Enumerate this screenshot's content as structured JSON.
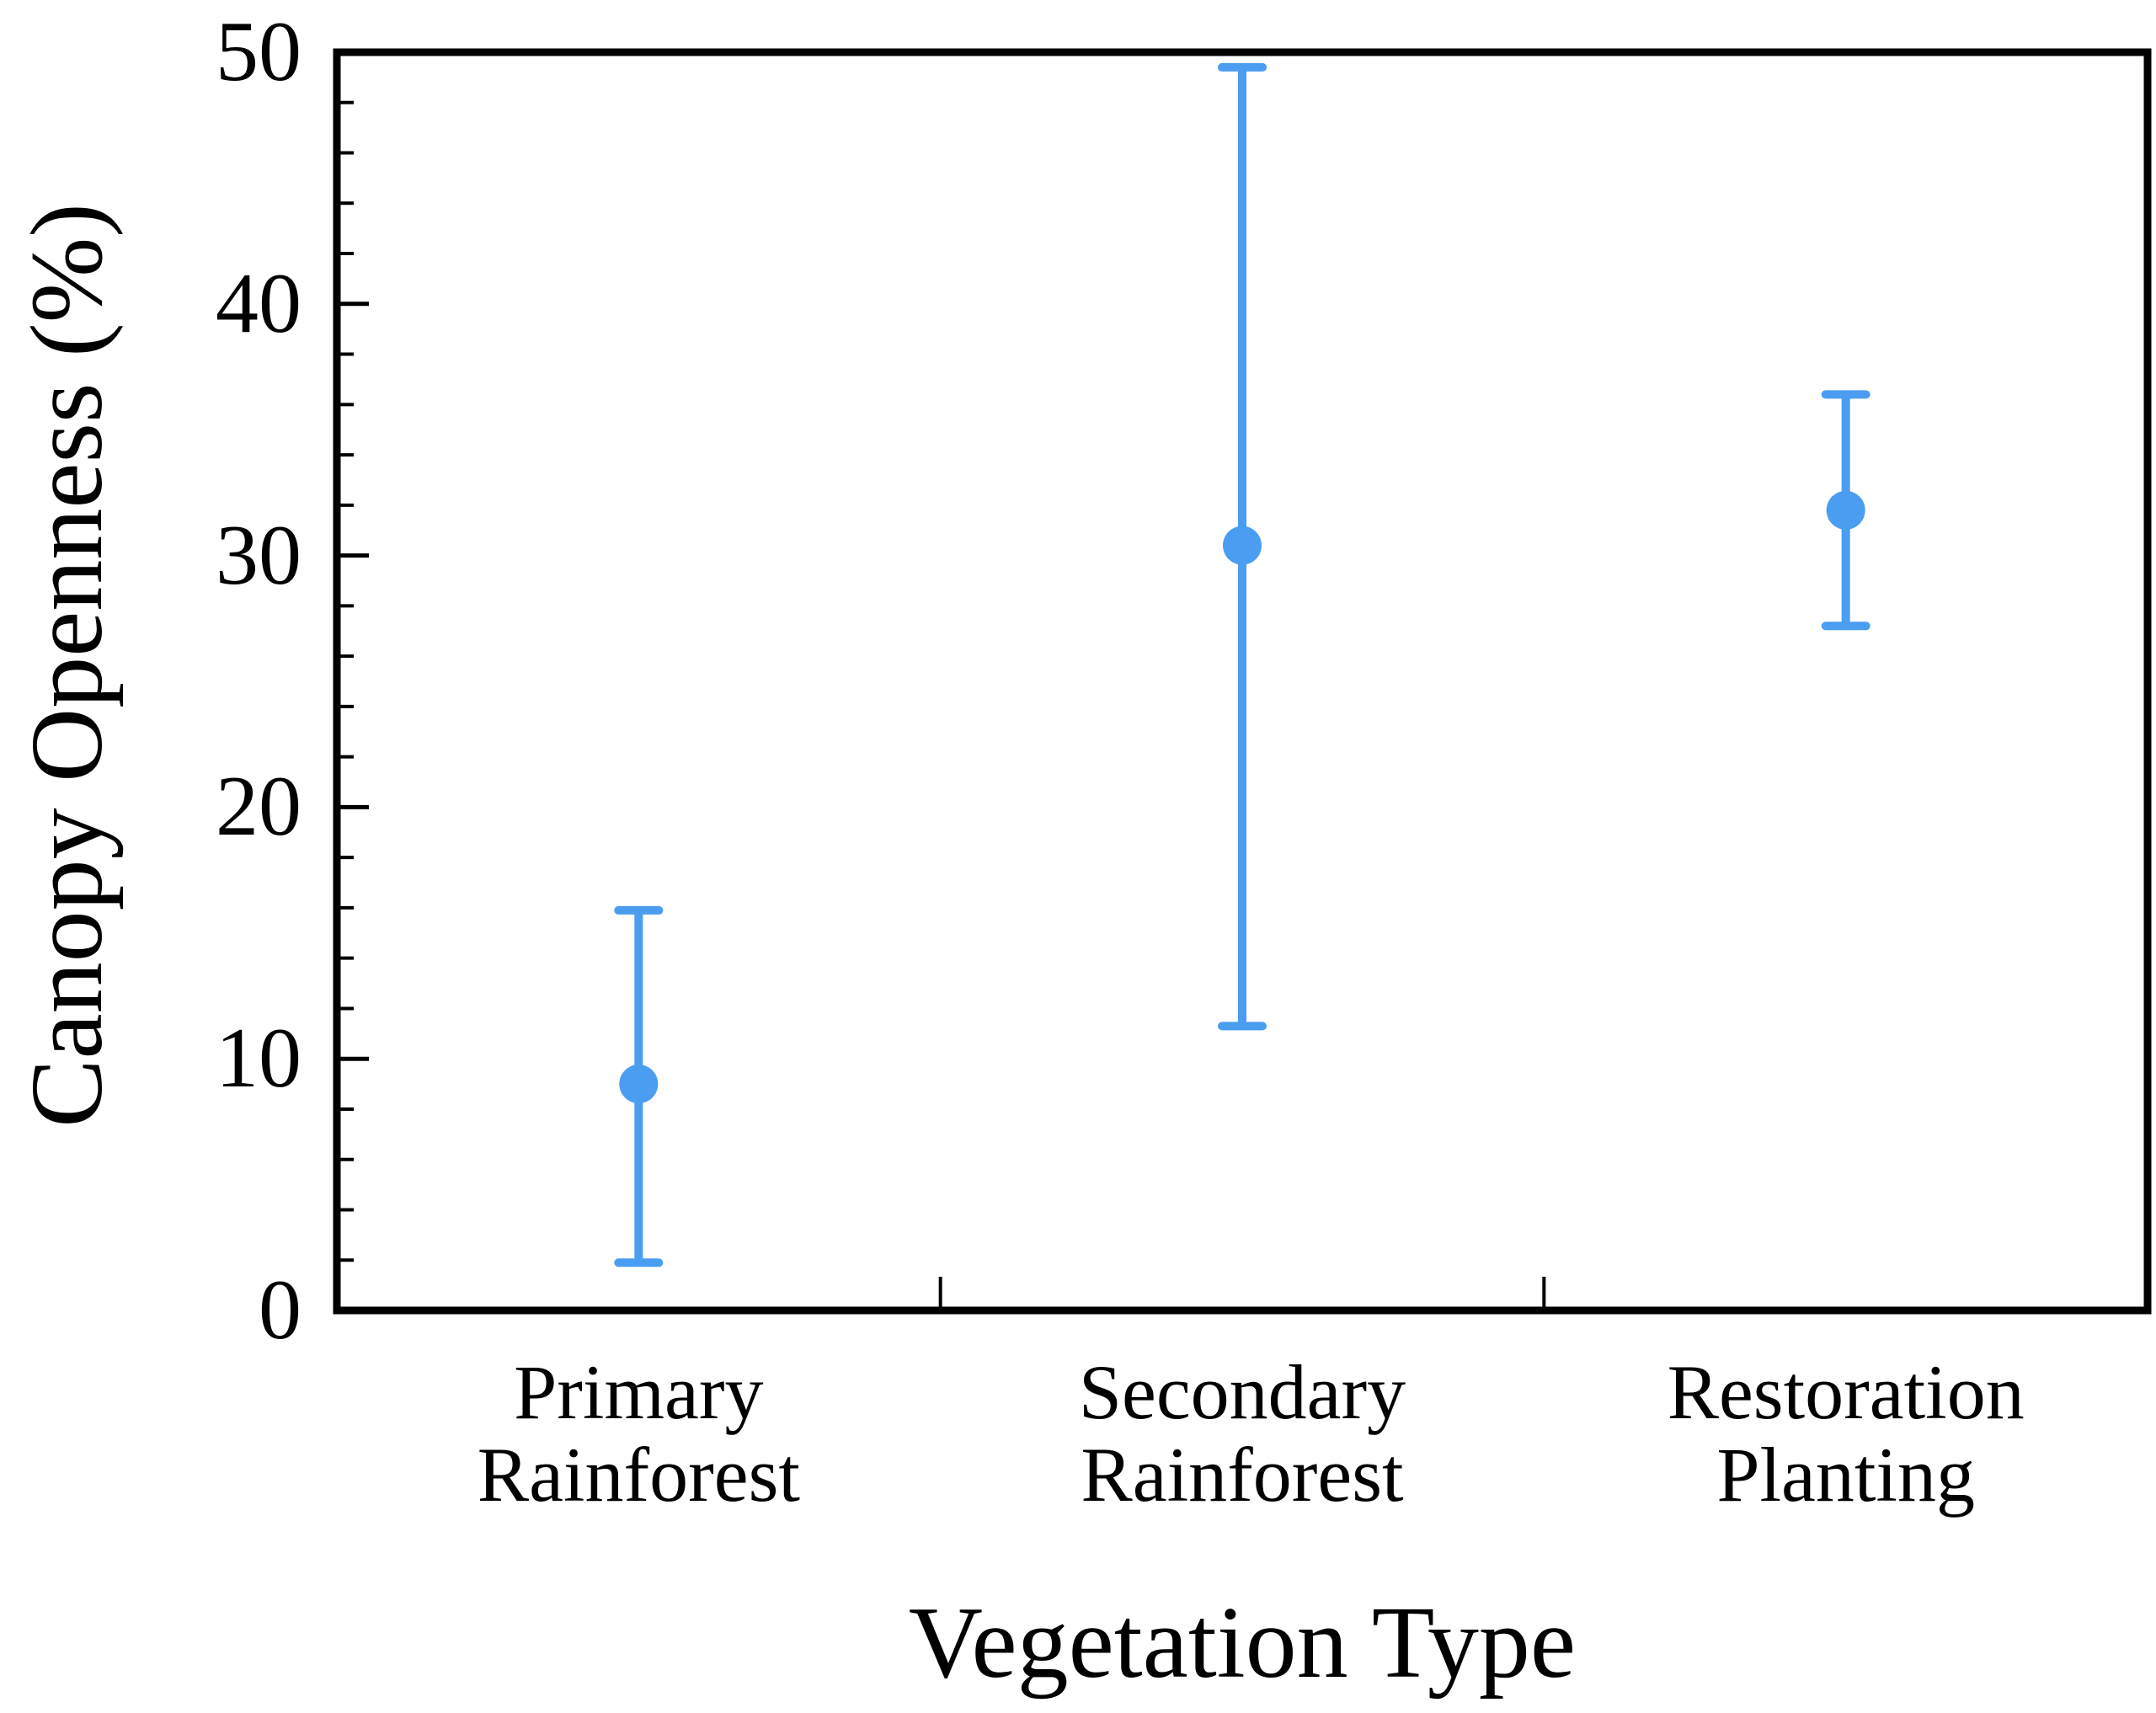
{
  "figure": {
    "background": "#ffffff"
  },
  "chart_data": {
    "type": "scatter",
    "title": "",
    "xlabel": "Vegetation Type",
    "ylabel": "Canopy Openness (%)",
    "categories": [
      "Primary\nRainforest",
      "Secondary\nRainforest",
      "Restoration\nPlanting"
    ],
    "series": [
      {
        "name": "Canopy Openness mean with error bars",
        "means": [
          9.0,
          30.4,
          31.8
        ],
        "error_low": [
          1.9,
          11.3,
          27.2
        ],
        "error_high": [
          15.9,
          49.4,
          36.4
        ]
      }
    ],
    "ylim": [
      0,
      50
    ],
    "yticks": [
      "0",
      "10",
      "20",
      "30",
      "40",
      "50"
    ],
    "y_minor_step": 2,
    "grid": false,
    "legend": false,
    "marker_color": "#4a9df0",
    "frame_color": "#000000"
  }
}
